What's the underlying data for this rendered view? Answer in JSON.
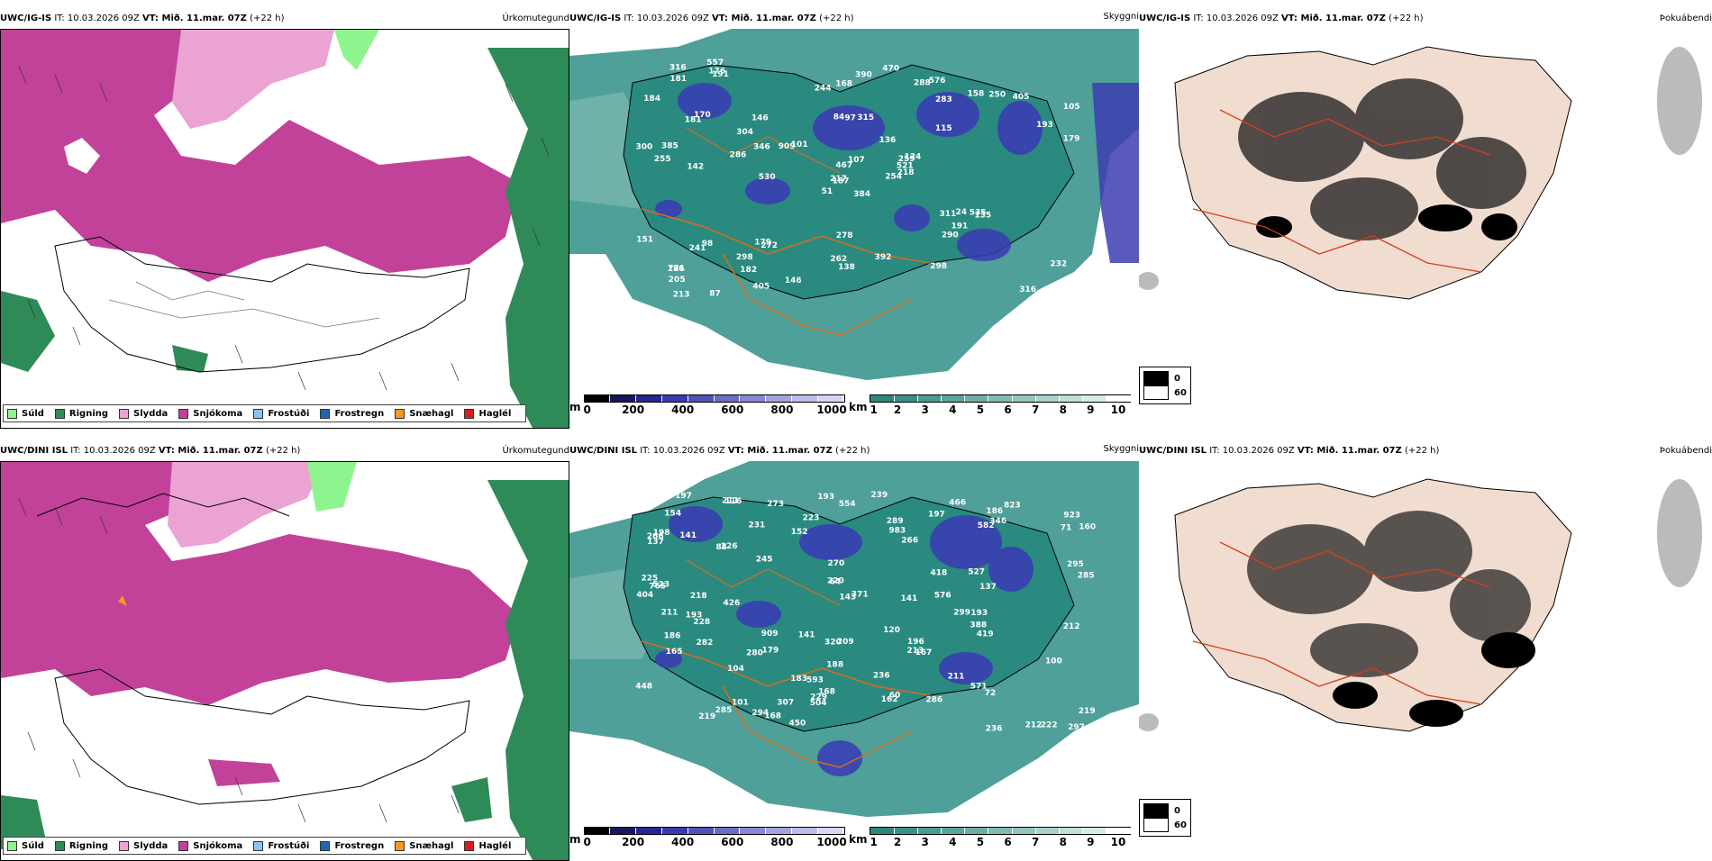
{
  "colors": {
    "snow": "#c2429a",
    "drizzle": "#8ef58e",
    "rain": "#2e8b57",
    "sleet": "#eba3d4",
    "ice_pellets": "#8fc1e9",
    "freezing_rain": "#1f67b1",
    "graupel": "#f59a1c",
    "hail": "#e01b1b",
    "teal": "#2f8f86",
    "cloud_blue": "#4a4ab8",
    "road": "#d86d1c",
    "fog": "#1a1a1a",
    "land": "#f1ddcf"
  },
  "rows": [
    {
      "id": "igis",
      "precip": {
        "model": "UWC/IG-IS",
        "rest": " IT: 10.03.2026 09Z ",
        "vt_label": "VT:",
        "vt": " Mið. 11.mar. 07Z",
        "lead": " (+22 h)",
        "title": "Úrkomutegund"
      },
      "cloud": {
        "model": "UWC/IG-IS",
        "rest": " IT: 10.03.2026 09Z ",
        "vt_label": "VT:",
        "vt": " Mið. 11.mar. 07Z",
        "lead": " (+22 h)",
        "title": "Skyggni"
      },
      "fog": {
        "model": "UWC/IG-IS",
        "rest": " IT: 10.03.2026 09Z ",
        "vt_label": "VT:",
        "vt": " Mið. 11.mar. 07Z",
        "lead": " (+22 h)",
        "title": "Þokuábendi"
      },
      "cloud_labels": [
        "384",
        "181",
        "187",
        "721",
        "259",
        "272",
        "576",
        "315",
        "283",
        "254",
        "191",
        "207",
        "142",
        "105",
        "51",
        "115",
        "87",
        "84",
        "136",
        "98",
        "101",
        "205",
        "182",
        "97",
        "124",
        "135",
        "170",
        "168",
        "255",
        "311",
        "179",
        "217",
        "262",
        "467",
        "146",
        "158",
        "179",
        "316",
        "232",
        "535",
        "470",
        "909",
        "286",
        "290",
        "405",
        "300",
        "521",
        "213",
        "138",
        "218",
        "241",
        "193",
        "184",
        "191",
        "298",
        "298",
        "176",
        "316",
        "392",
        "405",
        "390",
        "530",
        "385",
        "304",
        "250",
        "557",
        "288",
        "244",
        "107",
        "151",
        "278",
        "146",
        "24",
        "346",
        "186",
        "181"
      ]
    },
    {
      "id": "dini",
      "precip": {
        "model": "UWC/DINI ISL",
        "rest": " IT: 10.03.2026 09Z ",
        "vt_label": "VT:",
        "vt": " Mið. 11.mar. 07Z",
        "lead": " (+22 h)",
        "title": "Úrkomutegund"
      },
      "cloud": {
        "model": "UWC/DINI ISL",
        "rest": " IT: 10.03.2026 09Z ",
        "vt_label": "VT:",
        "vt": " Mið. 11.mar. 07Z",
        "lead": " (+22 h)",
        "title": "Skyggni"
      },
      "fog": {
        "model": "UWC/DINI ISL",
        "rest": " IT: 10.03.2026 09Z ",
        "vt_label": "VT:",
        "vt": " Mið. 11.mar. 07Z",
        "lead": " (+22 h)",
        "title": "Þokuábendi"
      },
      "cloud_labels": [
        "404",
        "554",
        "527",
        "923",
        "266",
        "212",
        "193",
        "266",
        "270",
        "823",
        "371",
        "419",
        "193",
        "137",
        "226",
        "104",
        "60",
        "211",
        "120",
        "188",
        "211",
        "72",
        "71",
        "64",
        "101",
        "143",
        "196",
        "116",
        "168",
        "162",
        "186",
        "236",
        "141",
        "219",
        "294",
        "165",
        "137",
        "154",
        "307",
        "245",
        "236",
        "576",
        "219",
        "285",
        "209",
        "280",
        "582",
        "448",
        "229",
        "426",
        "418",
        "571",
        "167",
        "193",
        "286",
        "223",
        "213",
        "220",
        "186",
        "983",
        "320",
        "285",
        "295",
        "297",
        "222",
        "218",
        "593",
        "909",
        "504",
        "225",
        "197",
        "197",
        "211",
        "183",
        "289",
        "231",
        "466",
        "228",
        "239",
        "198",
        "282",
        "450",
        "299",
        "100",
        "523",
        "765",
        "346",
        "212",
        "152",
        "141",
        "168",
        "160",
        "85",
        "388",
        "179",
        "141",
        "273"
      ]
    }
  ],
  "precip_legend": [
    {
      "label": "Súld",
      "color": "#8ef58e"
    },
    {
      "label": "Rigning",
      "color": "#2e8b57"
    },
    {
      "label": "Slydda",
      "color": "#eba3d4"
    },
    {
      "label": "Snjókoma",
      "color": "#c2429a"
    },
    {
      "label": "Frostúði",
      "color": "#8fc1e9"
    },
    {
      "label": "Frostregn",
      "color": "#1f67b1"
    },
    {
      "label": "Snæhagl",
      "color": "#f59a1c"
    },
    {
      "label": "Haglél",
      "color": "#e01b1b"
    }
  ],
  "cloud_base_bar": {
    "unit": "m",
    "ticks": [
      "0",
      "200",
      "400",
      "600",
      "800",
      "1000"
    ],
    "colors": [
      "#000000",
      "#17175e",
      "#262690",
      "#3a3ab0",
      "#5151bd",
      "#6b6bca",
      "#8787d6",
      "#a3a3e0",
      "#bdbde9",
      "#d6d6f3"
    ]
  },
  "visibility_bar": {
    "unit": "km",
    "ticks": [
      "1",
      "2",
      "3",
      "4",
      "5",
      "6",
      "7",
      "8",
      "9",
      "10"
    ],
    "colors": [
      "#2d877f",
      "#3a9089",
      "#4b9a93",
      "#5ba49d",
      "#6dafa8",
      "#80bab3",
      "#94c6bf",
      "#a9d2cc",
      "#bfdfd9",
      "#d6ece8",
      "#ffffff"
    ]
  },
  "fog_legend": {
    "high": "0",
    "low": "60",
    "high_color": "#000000",
    "low_color": "#ffffff"
  }
}
